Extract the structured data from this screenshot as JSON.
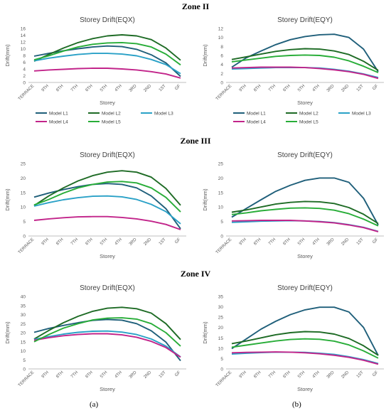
{
  "zones": [
    "Zone II",
    "Zone III",
    "Zone IV"
  ],
  "captions": [
    "(a)",
    "(b)"
  ],
  "colors": {
    "Model L1": "#1f5f7a",
    "Model L2": "#1e6b25",
    "Model L3": "#2aa1c7",
    "Model L4": "#c2248a",
    "Model L5": "#28ad38"
  },
  "chart_data": [
    {
      "type": "line",
      "zone": "Zone II",
      "title": "Storey Drift(EQX)",
      "xlabel": "Storey",
      "ylabel": "Drift(mm)",
      "categories": [
        "TERRACE",
        "9TH",
        "8TH",
        "7TH",
        "6TH",
        "5TH",
        "4TH",
        "3RD",
        "2ND",
        "1ST",
        "GF"
      ],
      "ylim": [
        0,
        16
      ],
      "yticks": [
        0,
        2,
        4,
        6,
        8,
        10,
        12,
        14,
        16
      ],
      "grid": false,
      "legend": "bottom",
      "series": [
        {
          "name": "Model L1",
          "values": [
            7.8,
            8.6,
            9.4,
            10.0,
            10.5,
            10.8,
            10.6,
            9.8,
            8.2,
            5.8,
            1.8
          ]
        },
        {
          "name": "Model L2",
          "values": [
            6.3,
            8.3,
            10.2,
            11.8,
            13.0,
            13.8,
            14.1,
            13.8,
            12.7,
            10.2,
            6.6
          ]
        },
        {
          "name": "Model L3",
          "values": [
            6.4,
            7.2,
            7.8,
            8.3,
            8.6,
            8.6,
            8.4,
            7.9,
            6.8,
            5.3,
            2.6
          ]
        },
        {
          "name": "Model L4",
          "values": [
            3.4,
            3.7,
            3.9,
            4.1,
            4.2,
            4.2,
            4.0,
            3.7,
            3.2,
            2.5,
            1.3
          ]
        },
        {
          "name": "Model L5",
          "values": [
            6.7,
            7.9,
            9.3,
            10.5,
            11.3,
            11.7,
            11.8,
            11.5,
            10.5,
            8.4,
            5.2
          ]
        }
      ]
    },
    {
      "type": "line",
      "zone": "Zone II",
      "title": "Storey Drift(EQY)",
      "xlabel": "Storey",
      "ylabel": "Drift(mm)",
      "categories": [
        "TERRACE",
        "9TH",
        "8TH",
        "7TH",
        "6TH",
        "5TH",
        "4TH",
        "3RD",
        "2ND",
        "1ST",
        "GF"
      ],
      "ylim": [
        0,
        12
      ],
      "yticks": [
        0,
        2,
        4,
        6,
        8,
        10,
        12
      ],
      "grid": false,
      "legend": "bottom",
      "series": [
        {
          "name": "Model L1",
          "values": [
            3.4,
            5.5,
            7.0,
            8.4,
            9.5,
            10.2,
            10.6,
            10.7,
            10.0,
            7.4,
            2.4
          ]
        },
        {
          "name": "Model L2",
          "values": [
            5.1,
            5.7,
            6.3,
            6.9,
            7.3,
            7.5,
            7.4,
            7.0,
            6.2,
            4.7,
            2.7
          ]
        },
        {
          "name": "Model L3",
          "values": [
            3.0,
            3.1,
            3.2,
            3.3,
            3.3,
            3.3,
            3.2,
            2.9,
            2.5,
            1.9,
            1.1
          ]
        },
        {
          "name": "Model L4",
          "values": [
            3.2,
            3.3,
            3.4,
            3.4,
            3.4,
            3.3,
            3.1,
            2.8,
            2.4,
            1.8,
            0.9
          ]
        },
        {
          "name": "Model L5",
          "values": [
            4.6,
            5.0,
            5.4,
            5.8,
            6.0,
            6.1,
            6.0,
            5.6,
            4.8,
            3.6,
            2.2
          ]
        }
      ]
    },
    {
      "type": "line",
      "zone": "Zone III",
      "title": "Storey Drift(EQX)",
      "xlabel": "Storey",
      "ylabel": "Drift(mm)",
      "categories": [
        "TERRACE",
        "9TH",
        "8TH",
        "7TH",
        "6TH",
        "5TH",
        "4TH",
        "3RD",
        "2ND",
        "1ST",
        "GF"
      ],
      "ylim": [
        0,
        25
      ],
      "yticks": [
        0,
        5,
        10,
        15,
        20,
        25
      ],
      "grid": false,
      "legend": "none",
      "series": [
        {
          "name": "Model L1",
          "values": [
            13.4,
            14.8,
            16.0,
            17.0,
            17.8,
            18.1,
            17.8,
            16.6,
            13.8,
            9.4,
            2.5
          ]
        },
        {
          "name": "Model L2",
          "values": [
            10.5,
            13.8,
            16.6,
            19.0,
            20.8,
            22.0,
            22.5,
            22.0,
            20.3,
            16.4,
            10.6
          ]
        },
        {
          "name": "Model L3",
          "values": [
            10.3,
            11.5,
            12.5,
            13.2,
            13.7,
            13.8,
            13.5,
            12.6,
            10.9,
            8.4,
            4.2
          ]
        },
        {
          "name": "Model L4",
          "values": [
            5.4,
            5.9,
            6.3,
            6.6,
            6.7,
            6.7,
            6.4,
            5.9,
            5.1,
            4.0,
            2.2
          ]
        },
        {
          "name": "Model L5",
          "values": [
            10.7,
            12.6,
            14.8,
            16.6,
            17.8,
            18.6,
            18.8,
            18.3,
            16.6,
            13.3,
            8.3
          ]
        }
      ]
    },
    {
      "type": "line",
      "zone": "Zone III",
      "title": "Storey Drift(EQY)",
      "xlabel": "Storey",
      "ylabel": "Drift(mm)",
      "categories": [
        "TERRACE",
        "9TH",
        "8TH",
        "7TH",
        "6TH",
        "5TH",
        "4TH",
        "3RD",
        "2ND",
        "1ST",
        "GF"
      ],
      "ylim": [
        0,
        25
      ],
      "yticks": [
        0,
        5,
        10,
        15,
        20,
        25
      ],
      "grid": false,
      "legend": "none",
      "series": [
        {
          "name": "Model L1",
          "values": [
            6.5,
            9.5,
            12.5,
            15.4,
            17.5,
            19.2,
            20.0,
            20.0,
            18.5,
            13.0,
            3.8
          ]
        },
        {
          "name": "Model L2",
          "values": [
            8.2,
            9.0,
            10.0,
            11.0,
            11.6,
            11.9,
            11.8,
            11.2,
            9.8,
            7.5,
            4.3
          ]
        },
        {
          "name": "Model L3",
          "values": [
            4.7,
            4.9,
            5.1,
            5.2,
            5.3,
            5.2,
            5.0,
            4.6,
            3.9,
            3.0,
            1.6
          ]
        },
        {
          "name": "Model L4",
          "values": [
            5.2,
            5.3,
            5.4,
            5.4,
            5.4,
            5.2,
            4.9,
            4.5,
            3.8,
            2.9,
            1.5
          ]
        },
        {
          "name": "Model L5",
          "values": [
            7.4,
            8.0,
            8.7,
            9.2,
            9.6,
            9.7,
            9.5,
            8.9,
            7.7,
            5.8,
            3.5
          ]
        }
      ]
    },
    {
      "type": "line",
      "zone": "Zone IV",
      "title": "Storey Drift(EQX)",
      "xlabel": "Storey",
      "ylabel": "Drift(mm)",
      "categories": [
        "TERRACE",
        "9TH",
        "8TH",
        "7TH",
        "6TH",
        "5TH",
        "4TH",
        "3RD",
        "2ND",
        "1ST",
        "GF"
      ],
      "ylim": [
        0,
        40
      ],
      "yticks": [
        0,
        5,
        10,
        15,
        20,
        25,
        30,
        35,
        40
      ],
      "grid": false,
      "legend": "none",
      "series": [
        {
          "name": "Model L1",
          "values": [
            20.2,
            22.3,
            24.0,
            25.5,
            26.8,
            27.3,
            26.9,
            25.0,
            21.0,
            14.8,
            4.5
          ]
        },
        {
          "name": "Model L2",
          "values": [
            16.5,
            21.2,
            25.5,
            29.0,
            31.8,
            33.5,
            34.0,
            33.2,
            30.8,
            25.0,
            16.2
          ]
        },
        {
          "name": "Model L3",
          "values": [
            16.3,
            17.8,
            19.2,
            20.2,
            20.8,
            20.9,
            20.3,
            19.0,
            16.5,
            12.6,
            6.6
          ]
        },
        {
          "name": "Model L4",
          "values": [
            15.8,
            17.2,
            18.3,
            19.0,
            19.4,
            19.4,
            18.8,
            17.5,
            15.2,
            11.8,
            6.5
          ]
        },
        {
          "name": "Model L5",
          "values": [
            15.0,
            19.0,
            22.5,
            25.0,
            27.0,
            28.0,
            28.2,
            27.5,
            25.0,
            20.0,
            12.6
          ]
        }
      ]
    },
    {
      "type": "line",
      "zone": "Zone IV",
      "title": "Storey Drift(EQY)",
      "xlabel": "Storey",
      "ylabel": "Drift(mm)",
      "categories": [
        "TERRACE",
        "9TH",
        "8TH",
        "7TH",
        "6TH",
        "5TH",
        "4TH",
        "3RD",
        "2ND",
        "1ST",
        "GF"
      ],
      "ylim": [
        0,
        35
      ],
      "yticks": [
        0,
        5,
        10,
        15,
        20,
        25,
        30,
        35
      ],
      "grid": false,
      "legend": "none",
      "series": [
        {
          "name": "Model L1",
          "values": [
            9.8,
            14.5,
            19.2,
            23.0,
            26.2,
            28.5,
            29.8,
            29.8,
            27.5,
            20.0,
            6.5
          ]
        },
        {
          "name": "Model L2",
          "values": [
            12.2,
            13.5,
            15.0,
            16.5,
            17.5,
            18.0,
            17.8,
            16.8,
            14.7,
            11.2,
            6.6
          ]
        },
        {
          "name": "Model L3",
          "values": [
            7.2,
            7.6,
            7.9,
            8.1,
            8.1,
            8.0,
            7.6,
            7.0,
            5.9,
            4.5,
            2.6
          ]
        },
        {
          "name": "Model L4",
          "values": [
            7.8,
            8.0,
            8.1,
            8.2,
            8.1,
            7.8,
            7.3,
            6.6,
            5.6,
            4.2,
            2.3
          ]
        },
        {
          "name": "Model L5",
          "values": [
            10.5,
            11.5,
            12.5,
            13.5,
            14.2,
            14.5,
            14.3,
            13.4,
            11.6,
            8.7,
            5.2
          ]
        }
      ]
    }
  ]
}
